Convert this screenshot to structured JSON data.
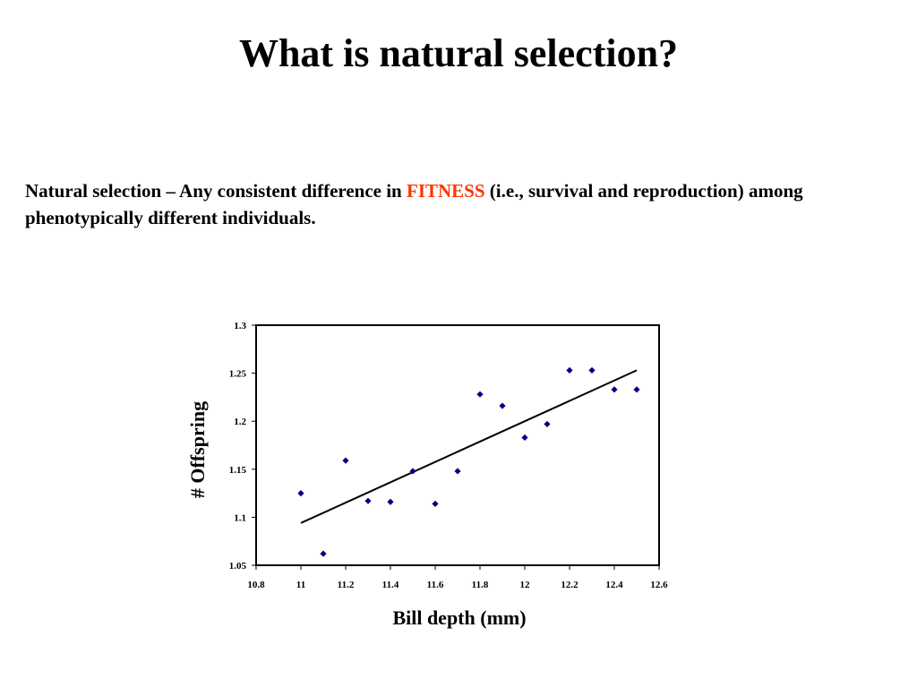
{
  "slide": {
    "title": "What is natural selection?",
    "definition": {
      "part1": "Natural selection – Any consistent difference in ",
      "highlight": "FITNESS",
      "part2": " (i.e., survival and reproduction) among phenotypically different individuals."
    }
  },
  "colors": {
    "highlight": "#ff3300",
    "points": "#000080",
    "trendline": "#000000"
  },
  "chart_data": {
    "type": "scatter",
    "xlabel": "Bill depth (mm)",
    "ylabel": "# Offspring",
    "xlim": [
      10.8,
      12.6
    ],
    "ylim": [
      1.05,
      1.3
    ],
    "xticks": [
      "10.8",
      "11",
      "11.2",
      "11.4",
      "11.6",
      "11.8",
      "12",
      "12.2",
      "12.4",
      "12.6"
    ],
    "yticks": [
      "1.05",
      "1.1",
      "1.15",
      "1.2",
      "1.25",
      "1.3"
    ],
    "grid": false,
    "legend": false,
    "marker": "diamond",
    "series": [
      {
        "x": [
          11.0,
          11.1,
          11.2,
          11.3,
          11.4,
          11.5,
          11.6,
          11.7,
          11.8,
          11.9,
          12.0,
          12.1,
          12.2,
          12.3,
          12.4,
          12.5
        ],
        "y": [
          1.125,
          1.062,
          1.159,
          1.117,
          1.116,
          1.148,
          1.114,
          1.148,
          1.228,
          1.216,
          1.183,
          1.197,
          1.253,
          1.253,
          1.233,
          1.233
        ]
      }
    ],
    "trendline": {
      "x": [
        11.0,
        12.5
      ],
      "y": [
        1.094,
        1.253
      ]
    }
  }
}
